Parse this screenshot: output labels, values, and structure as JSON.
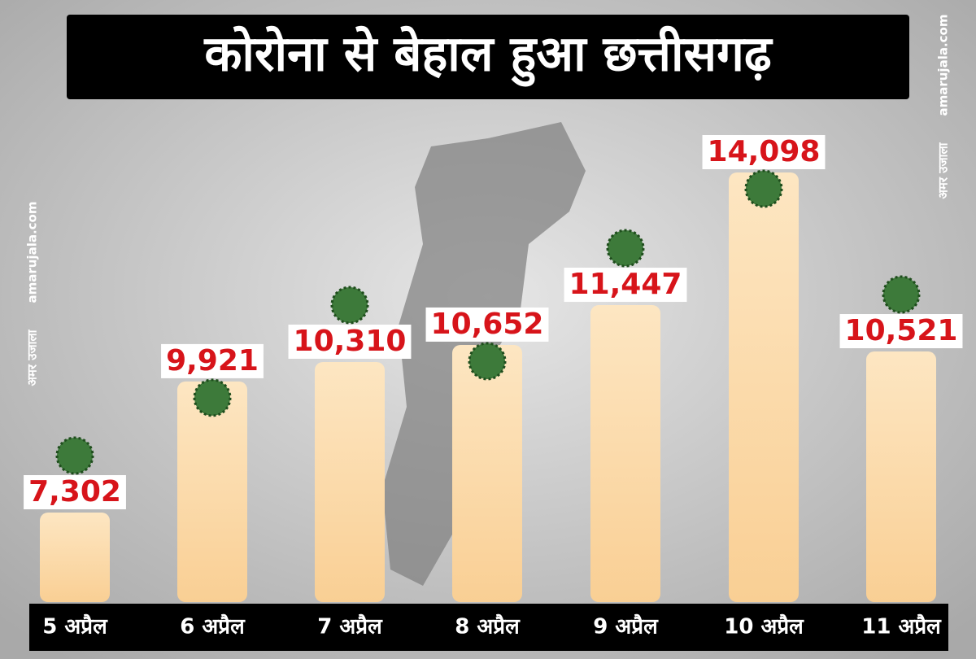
{
  "chart_data": {
    "type": "bar",
    "title": "कोरोना से बेहाल हुआ छत्तीसगढ़",
    "categories": [
      "5 अप्रैल",
      "6 अप्रैल",
      "7 अप्रैल",
      "8 अप्रैल",
      "9 अप्रैल",
      "10 अप्रैल",
      "11 अप्रैल"
    ],
    "values": [
      7302,
      9921,
      10310,
      10652,
      11447,
      14098,
      10521
    ],
    "value_labels": [
      "7,302",
      "9,921",
      "10,310",
      "10,652",
      "11,447",
      "14,098",
      "10,521"
    ],
    "color": "#fcd9a6",
    "label_color": "#d7141a"
  },
  "watermark": {
    "site": "amarujala.com",
    "brand": "अमर उजाला"
  }
}
